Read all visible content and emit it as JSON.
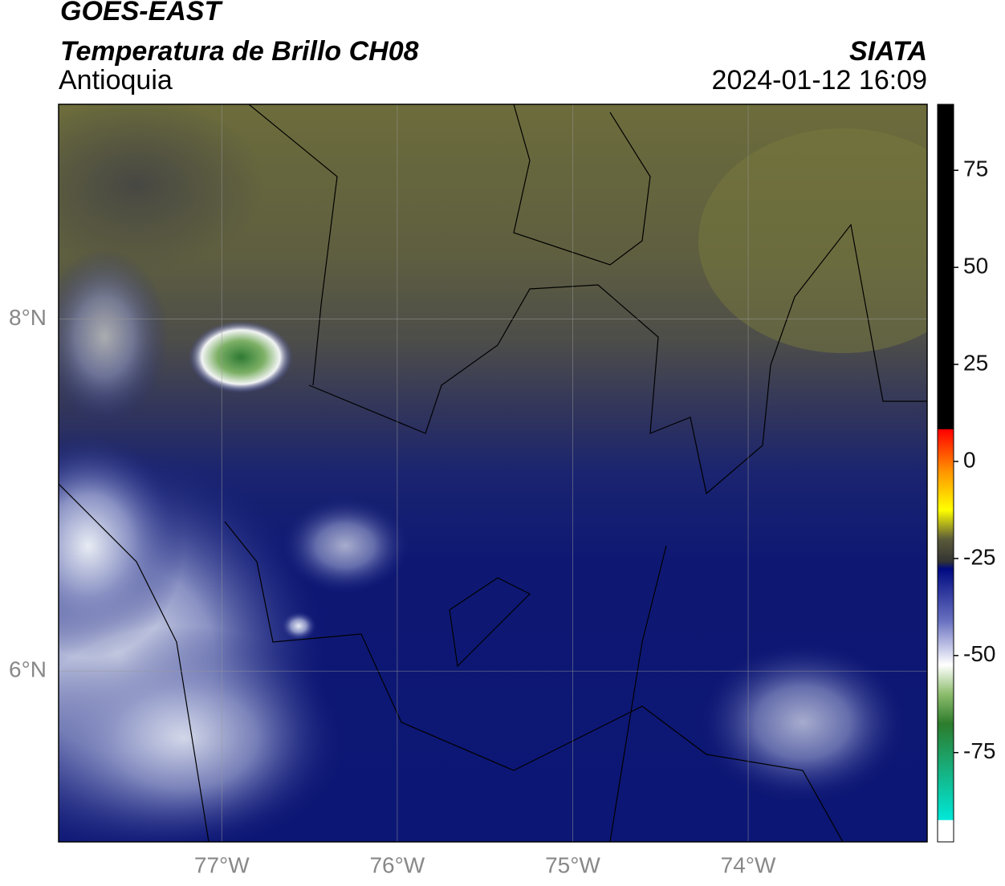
{
  "header": {
    "title": "GOES-EAST",
    "subtitle": "Temperatura de Brillo CH08",
    "region": "Antioquia",
    "source": "SIATA",
    "datetime": "2024-01-12 16:09"
  },
  "map": {
    "lonlim": [
      -77.93,
      -72.98
    ],
    "latlim": [
      5.03,
      9.22
    ],
    "lonticks": [
      {
        "value": -77,
        "label": "77°W"
      },
      {
        "value": -76,
        "label": "76°W"
      },
      {
        "value": -75,
        "label": "75°W"
      },
      {
        "value": -74,
        "label": "74°W"
      }
    ],
    "latticks": [
      {
        "value": 8,
        "label": "8°N"
      },
      {
        "value": 6,
        "label": "6°N"
      }
    ]
  },
  "colorbar": {
    "lim": [
      -98,
      92
    ],
    "ticks": [
      75,
      50,
      25,
      0,
      -25,
      -50,
      -75
    ]
  }
}
